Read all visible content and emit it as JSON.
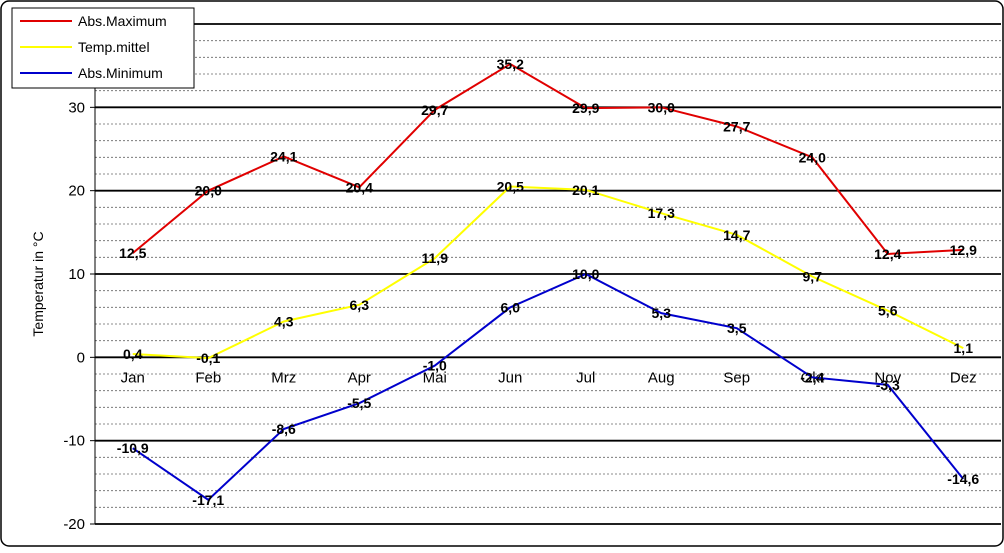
{
  "chart_data": {
    "type": "line",
    "categories": [
      "Jan",
      "Feb",
      "Mrz",
      "Apr",
      "Mai",
      "Jun",
      "Jul",
      "Aug",
      "Sep",
      "Okt",
      "Nov",
      "Dez"
    ],
    "series": [
      {
        "name": "Abs.Maximum",
        "color": "#e00000",
        "values": [
          12.5,
          20.0,
          24.1,
          20.4,
          29.7,
          35.2,
          29.9,
          30.0,
          27.7,
          24.0,
          12.4,
          12.9
        ],
        "labels": [
          "12,5",
          "20,0",
          "24,1",
          "20,4",
          "29,7",
          "35,2",
          "29,9",
          "30,0",
          "27,7",
          "24,0",
          "12,4",
          "12,9"
        ]
      },
      {
        "name": "Temp.mittel",
        "color": "#ffff00",
        "values": [
          0.4,
          -0.1,
          4.3,
          6.3,
          11.9,
          20.5,
          20.1,
          17.3,
          14.7,
          9.7,
          5.6,
          1.1
        ],
        "labels": [
          "0,4",
          "-0,1",
          "4,3",
          "6,3",
          "11,9",
          "20,5",
          "20,1",
          "17,3",
          "14,7",
          "9,7",
          "5,6",
          "1,1"
        ]
      },
      {
        "name": "Abs.Minimum",
        "color": "#0000cc",
        "values": [
          -10.9,
          -17.1,
          -8.6,
          -5.5,
          -1.0,
          6.0,
          10.0,
          5.3,
          3.5,
          -2.4,
          -3.3,
          -14.6
        ],
        "labels": [
          "-10,9",
          "-17,1",
          "-8,6",
          "-5,5",
          "-1,0",
          "6,0",
          "10,0",
          "5,3",
          "3,5",
          "-2,4",
          "-3,3",
          "-14,6"
        ]
      }
    ],
    "ylabel": "Temperatur in °C",
    "ylim": [
      -20,
      40
    ],
    "yticks": [
      -20,
      -10,
      0,
      10,
      20,
      30
    ],
    "grid": "major and minor horizontal",
    "legend_position": "top-left"
  }
}
